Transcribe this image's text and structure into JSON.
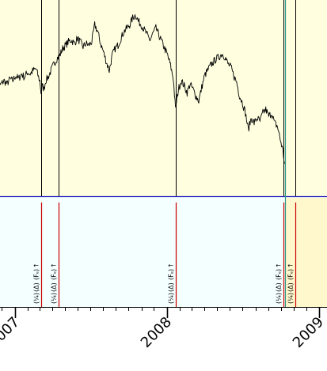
{
  "colors": {
    "price_panel_bg": "#ffffe0",
    "event_panel_bg": "#f4ffff",
    "event_panel_tail_bg": "#fff8cc",
    "price_line": "#000000",
    "separator": "#2222bb",
    "event_line_price": "#000000",
    "event_line_events": "#cc0000",
    "teal_marker": "#2e9a8a",
    "axis": "#000000"
  },
  "chart_data": {
    "type": "line",
    "title": "",
    "xlabel": "",
    "ylabel": "",
    "x_range": [
      "2006-11-15",
      "2009-01-01"
    ],
    "x_ticks": [
      {
        "date": "2007-01-01",
        "label": "2007"
      },
      {
        "date": "2008-01-01",
        "label": "2008"
      },
      {
        "date": "2009-01-01",
        "label": "2009"
      }
    ],
    "minor_ticks_monthly": true,
    "ylim": [
      0,
      100
    ],
    "y_axis_labels_shown": false,
    "grid": false,
    "legend": "none",
    "series": [
      {
        "points": [
          [
            "2006-11-15",
            51
          ],
          [
            "2006-11-22",
            53
          ],
          [
            "2006-11-29",
            55
          ],
          [
            "2006-12-06",
            57
          ],
          [
            "2006-12-13",
            55
          ],
          [
            "2006-12-20",
            58
          ],
          [
            "2006-12-27",
            57
          ],
          [
            "2007-01-03",
            60
          ],
          [
            "2007-01-10",
            58
          ],
          [
            "2007-01-17",
            61
          ],
          [
            "2007-01-24",
            59
          ],
          [
            "2007-01-31",
            62
          ],
          [
            "2007-02-07",
            61
          ],
          [
            "2007-02-14",
            63
          ],
          [
            "2007-02-21",
            64
          ],
          [
            "2007-02-27",
            59
          ],
          [
            "2007-03-02",
            57
          ],
          [
            "2007-03-05",
            50
          ],
          [
            "2007-03-08",
            54
          ],
          [
            "2007-03-12",
            52
          ],
          [
            "2007-03-16",
            57
          ],
          [
            "2007-03-22",
            59
          ],
          [
            "2007-03-29",
            63
          ],
          [
            "2007-04-05",
            67
          ],
          [
            "2007-04-12",
            70
          ],
          [
            "2007-04-19",
            72
          ],
          [
            "2007-04-26",
            76
          ],
          [
            "2007-05-03",
            78
          ],
          [
            "2007-05-10",
            80
          ],
          [
            "2007-05-17",
            81
          ],
          [
            "2007-05-24",
            79
          ],
          [
            "2007-05-31",
            82
          ],
          [
            "2007-06-07",
            80
          ],
          [
            "2007-06-14",
            77
          ],
          [
            "2007-06-21",
            79
          ],
          [
            "2007-06-28",
            78
          ],
          [
            "2007-07-05",
            80
          ],
          [
            "2007-07-12",
            90
          ],
          [
            "2007-07-19",
            86
          ],
          [
            "2007-07-26",
            79
          ],
          [
            "2007-08-02",
            74
          ],
          [
            "2007-08-09",
            68
          ],
          [
            "2007-08-16",
            63
          ],
          [
            "2007-08-23",
            72
          ],
          [
            "2007-08-30",
            76
          ],
          [
            "2007-09-06",
            78
          ],
          [
            "2007-09-13",
            82
          ],
          [
            "2007-09-20",
            86
          ],
          [
            "2007-09-27",
            88
          ],
          [
            "2007-10-04",
            90
          ],
          [
            "2007-10-11",
            94
          ],
          [
            "2007-10-18",
            96
          ],
          [
            "2007-10-25",
            92
          ],
          [
            "2007-11-01",
            90
          ],
          [
            "2007-11-08",
            87
          ],
          [
            "2007-11-15",
            84
          ],
          [
            "2007-11-22",
            81
          ],
          [
            "2007-11-29",
            85
          ],
          [
            "2007-12-06",
            88
          ],
          [
            "2007-12-13",
            84
          ],
          [
            "2007-12-20",
            80
          ],
          [
            "2007-12-27",
            76
          ],
          [
            "2008-01-03",
            72
          ],
          [
            "2008-01-10",
            66
          ],
          [
            "2008-01-17",
            58
          ],
          [
            "2008-01-22",
            40
          ],
          [
            "2008-01-29",
            52
          ],
          [
            "2008-02-05",
            57
          ],
          [
            "2008-02-12",
            54
          ],
          [
            "2008-02-19",
            50
          ],
          [
            "2008-02-26",
            55
          ],
          [
            "2008-03-04",
            52
          ],
          [
            "2008-03-11",
            48
          ],
          [
            "2008-03-18",
            45
          ],
          [
            "2008-03-25",
            53
          ],
          [
            "2008-04-01",
            60
          ],
          [
            "2008-04-08",
            63
          ],
          [
            "2008-04-15",
            66
          ],
          [
            "2008-04-22",
            68
          ],
          [
            "2008-04-29",
            70
          ],
          [
            "2008-05-06",
            71
          ],
          [
            "2008-05-13",
            73
          ],
          [
            "2008-05-20",
            71
          ],
          [
            "2008-05-27",
            67
          ],
          [
            "2008-06-03",
            65
          ],
          [
            "2008-06-10",
            60
          ],
          [
            "2008-06-17",
            56
          ],
          [
            "2008-06-24",
            48
          ],
          [
            "2008-07-01",
            44
          ],
          [
            "2008-07-08",
            38
          ],
          [
            "2008-07-15",
            28
          ],
          [
            "2008-07-22",
            35
          ],
          [
            "2008-07-29",
            32
          ],
          [
            "2008-08-05",
            35
          ],
          [
            "2008-08-12",
            33
          ],
          [
            "2008-08-19",
            38
          ],
          [
            "2008-08-26",
            40
          ],
          [
            "2008-09-02",
            36
          ],
          [
            "2008-09-09",
            38
          ],
          [
            "2008-09-16",
            32
          ],
          [
            "2008-09-23",
            30
          ],
          [
            "2008-09-30",
            22
          ],
          [
            "2008-10-06",
            16
          ],
          [
            "2008-10-10",
            8
          ]
        ]
      }
    ],
    "event_markers": [
      {
        "date": "2007-03-05",
        "icons": [
          "(¼)",
          "(Δ)",
          "(Fₑ)",
          "↑"
        ]
      },
      {
        "date": "2007-04-16",
        "icons": [
          "(¼)",
          "(Δ)",
          "(Fₑ)",
          "↑"
        ]
      },
      {
        "date": "2008-01-22",
        "icons": [
          "(¼)",
          "(Δ)",
          "(Fₑ)",
          "↑"
        ]
      },
      {
        "date": "2008-10-07",
        "icons": [
          "(¼)",
          "(Δ)",
          "(Fₑ)",
          "↑"
        ]
      },
      {
        "date": "2008-11-04",
        "icons": [
          "(¼)",
          "(Δ)",
          "(Fₑ)",
          "↑"
        ]
      }
    ],
    "highlight_marker": {
      "date": "2008-10-11"
    },
    "shaded_region": {
      "from": "2008-10-11",
      "to": "2009-01-01"
    }
  }
}
